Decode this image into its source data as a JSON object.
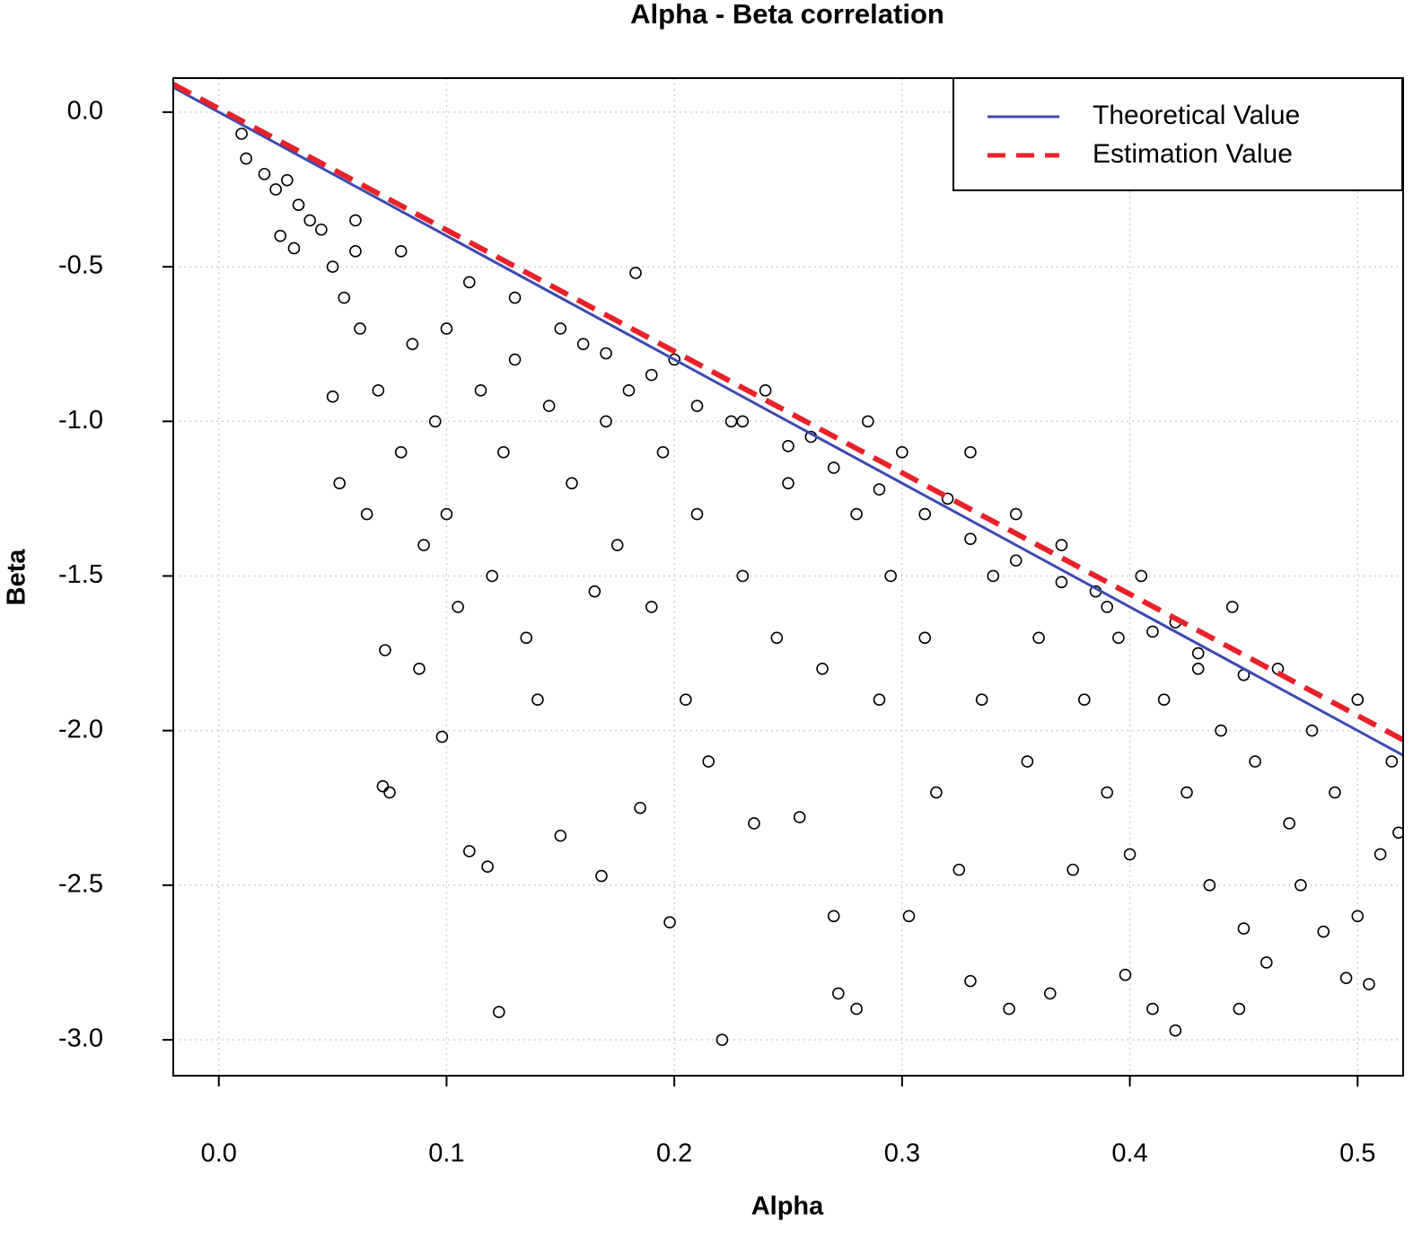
{
  "chart_data": {
    "type": "scatter",
    "title": "Alpha - Beta correlation",
    "x_label": "Alpha",
    "y_label": "Beta",
    "xlim": [
      -0.02,
      0.52
    ],
    "ylim": [
      -3.116,
      0.11
    ],
    "xticks": [
      {
        "value": 0,
        "label": "0.0"
      },
      0.1,
      0.2,
      0.3,
      0.4,
      0.5
    ],
    "yticks": [
      {
        "value": 0,
        "label": "0.0"
      },
      -0.5,
      {
        "value": -1,
        "label": "-1.0"
      },
      -1.5,
      {
        "value": -2,
        "label": "-2.0"
      },
      -2.5,
      {
        "value": -3,
        "label": "-3.0"
      }
    ],
    "grid": true,
    "legend": "top-right",
    "points": {
      "color": "#000000",
      "x": [
        0.01,
        0.012,
        0.02,
        0.025,
        0.03,
        0.035,
        0.027,
        0.033,
        0.04,
        0.05,
        0.045,
        0.055,
        0.06,
        0.05,
        0.053,
        0.062,
        0.065,
        0.07,
        0.073,
        0.075,
        0.072,
        0.08,
        0.085,
        0.09,
        0.088,
        0.095,
        0.098,
        0.1,
        0.1,
        0.105,
        0.11,
        0.115,
        0.118,
        0.12,
        0.123,
        0.125,
        0.13,
        0.135,
        0.14,
        0.145,
        0.15,
        0.155,
        0.16,
        0.165,
        0.168,
        0.17,
        0.175,
        0.18,
        0.183,
        0.185,
        0.19,
        0.195,
        0.198,
        0.2,
        0.205,
        0.21,
        0.215,
        0.221,
        0.225,
        0.23,
        0.235,
        0.24,
        0.245,
        0.25,
        0.255,
        0.26,
        0.265,
        0.27,
        0.272,
        0.28,
        0.28,
        0.285,
        0.29,
        0.295,
        0.3,
        0.303,
        0.31,
        0.315,
        0.32,
        0.325,
        0.33,
        0.33,
        0.335,
        0.34,
        0.347,
        0.35,
        0.355,
        0.36,
        0.365,
        0.37,
        0.375,
        0.38,
        0.385,
        0.39,
        0.395,
        0.4,
        0.398,
        0.405,
        0.41,
        0.415,
        0.42,
        0.42,
        0.425,
        0.43,
        0.435,
        0.44,
        0.445,
        0.448,
        0.45,
        0.455,
        0.46,
        0.465,
        0.47,
        0.475,
        0.48,
        0.485,
        0.49,
        0.495,
        0.5,
        0.5,
        0.505,
        0.51,
        0.515,
        0.518,
        0.06,
        0.08,
        0.11,
        0.13,
        0.15,
        0.17,
        0.19,
        0.21,
        0.23,
        0.25,
        0.27,
        0.29,
        0.31,
        0.33,
        0.35,
        0.37,
        0.39,
        0.41,
        0.43,
        0.45
      ],
      "y": [
        -0.07,
        -0.15,
        -0.2,
        -0.25,
        -0.22,
        -0.3,
        -0.4,
        -0.44,
        -0.35,
        -0.5,
        -0.38,
        -0.6,
        -0.45,
        -0.92,
        -1.2,
        -0.7,
        -1.3,
        -0.9,
        -1.74,
        -2.2,
        -2.18,
        -1.1,
        -0.75,
        -1.4,
        -1.8,
        -1.0,
        -2.02,
        -1.3,
        -0.7,
        -1.6,
        -2.39,
        -0.9,
        -2.44,
        -1.5,
        -2.91,
        -1.1,
        -0.8,
        -1.7,
        -1.9,
        -0.95,
        -2.34,
        -1.2,
        -0.75,
        -1.55,
        -2.47,
        -1.0,
        -1.4,
        -0.9,
        -0.52,
        -2.25,
        -1.6,
        -1.1,
        -2.62,
        -0.8,
        -1.9,
        -1.3,
        -2.1,
        -3.0,
        -1.0,
        -1.5,
        -2.3,
        -0.9,
        -1.7,
        -1.2,
        -2.28,
        -1.05,
        -1.8,
        -2.6,
        -2.85,
        -2.9,
        -1.3,
        -1.0,
        -1.9,
        -1.5,
        -1.1,
        -2.6,
        -1.7,
        -2.2,
        -1.25,
        -2.45,
        -2.81,
        -1.1,
        -1.9,
        -1.5,
        -2.9,
        -1.3,
        -2.1,
        -1.7,
        -2.85,
        -1.4,
        -2.45,
        -1.9,
        -1.55,
        -2.2,
        -1.7,
        -2.4,
        -2.79,
        -1.5,
        -2.9,
        -1.9,
        -2.97,
        -1.65,
        -2.2,
        -1.8,
        -2.5,
        -2.0,
        -1.6,
        -2.9,
        -2.64,
        -2.1,
        -2.75,
        -1.8,
        -2.3,
        -2.5,
        -2.0,
        -2.65,
        -2.2,
        -2.8,
        -2.6,
        -1.9,
        -2.82,
        -2.4,
        -2.1,
        -2.33,
        -0.35,
        -0.45,
        -0.55,
        -0.6,
        -0.7,
        -0.78,
        -0.85,
        -0.95,
        -1.0,
        -1.08,
        -1.15,
        -1.22,
        -1.3,
        -1.38,
        -1.45,
        -1.52,
        -1.6,
        -1.68,
        -1.75,
        -1.82
      ]
    },
    "lines": [
      {
        "name": "Theoretical Value",
        "color": "#3b4bb0",
        "dash": false,
        "x": [
          -0.02,
          0.52
        ],
        "y": [
          0.08,
          -2.08
        ]
      },
      {
        "name": "Estimation Value",
        "color": "#e8222a",
        "dash": true,
        "x": [
          -0.02,
          0.52
        ],
        "y": [
          0.09,
          -2.03
        ]
      }
    ]
  }
}
